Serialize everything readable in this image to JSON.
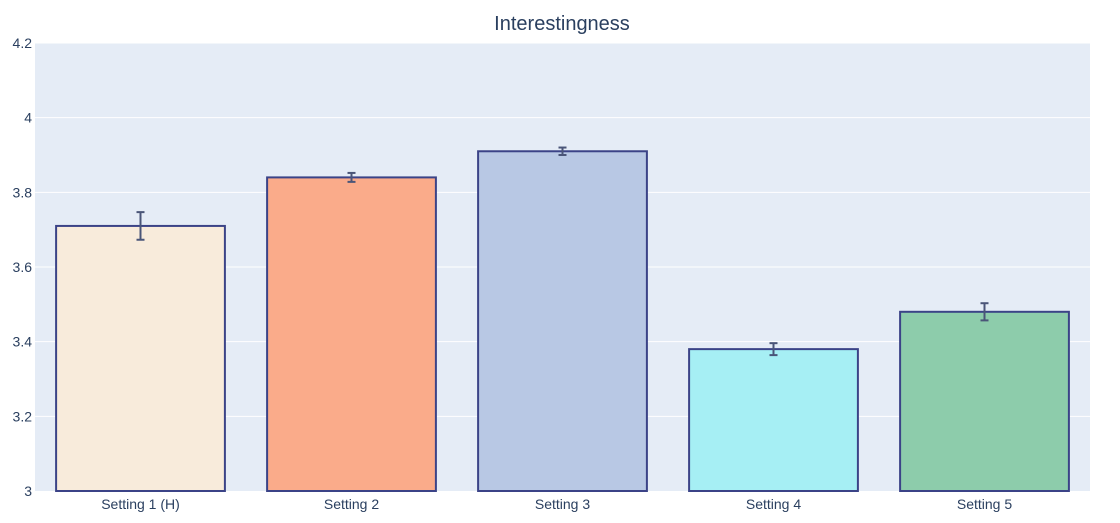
{
  "chart_data": {
    "type": "bar",
    "title": "Interestingness",
    "xlabel": "",
    "ylabel": "",
    "categories": [
      "Setting 1 (H)",
      "Setting 2",
      "Setting 3",
      "Setting 4",
      "Setting 5"
    ],
    "values": [
      3.71,
      3.84,
      3.91,
      3.38,
      3.48
    ],
    "error": [
      0.037,
      0.012,
      0.01,
      0.016,
      0.023
    ],
    "colors": [
      "#f8ebdb",
      "#faab8a",
      "#b8c8e4",
      "#a6eff4",
      "#8dccab"
    ],
    "bar_edge_color": "#3b4387",
    "error_color": "#4a5578",
    "ylim": [
      3,
      4.2
    ],
    "yticks": [
      "3",
      "3.2",
      "3.4",
      "3.6",
      "3.8",
      "4",
      "4.2"
    ],
    "ytick_values": [
      3,
      3.2,
      3.4,
      3.6,
      3.8,
      4,
      4.2
    ],
    "grid": true,
    "legend": "none",
    "plot_bg": "#e5ecf6",
    "text_color": "#2a3f5f"
  }
}
